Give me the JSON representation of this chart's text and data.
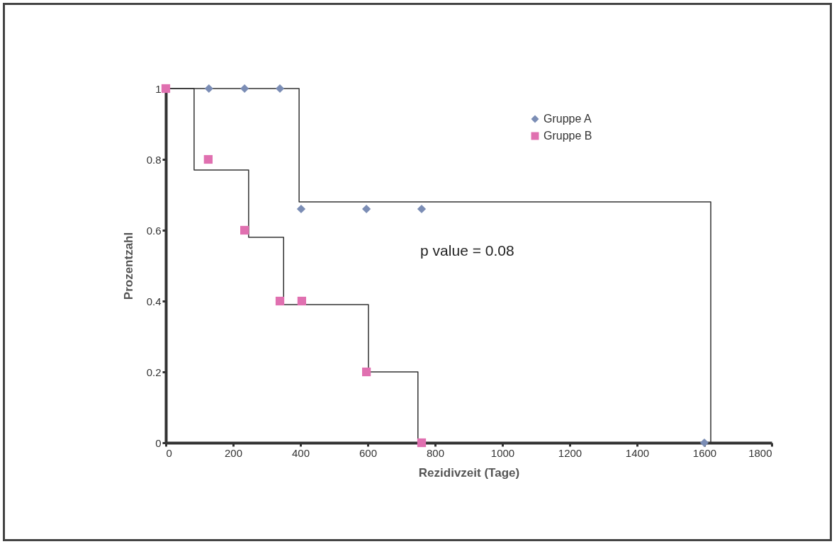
{
  "chart_data": {
    "type": "scatter",
    "xlabel": "Rezidivzeit (Tage)",
    "ylabel": "Prozentzahl",
    "xlim": [
      0,
      1800
    ],
    "xticks": [
      0,
      200,
      400,
      600,
      800,
      1000,
      1200,
      1400,
      1600,
      1800
    ],
    "ylim": [
      0,
      1
    ],
    "yticks": [
      0,
      0.2,
      0.4,
      0.6,
      0.8,
      1
    ],
    "grid": false,
    "legend": "top right",
    "annotations": [
      "p value = 0.08"
    ],
    "series": [
      {
        "type": "step",
        "color": "#333333",
        "line_style": "solid",
        "marker": "none",
        "x": [
          0,
          396,
          1619
        ],
        "values": [
          1,
          0.68,
          0
        ]
      },
      {
        "type": "step",
        "color": "#333333",
        "line_style": "solid",
        "marker": "none",
        "x": [
          0,
          84,
          246,
          350,
          602,
          749
        ],
        "values": [
          1,
          0.77,
          0.58,
          0.39,
          0.2,
          0
        ]
      },
      {
        "type": "scatter",
        "name": "Gruppe A",
        "color": "#7b8db5",
        "marker": "diamond",
        "x": [
          128,
          234,
          339,
          402,
          596,
          760,
          1600
        ],
        "values": [
          1,
          1,
          1,
          0.66,
          0.66,
          0.66,
          0
        ]
      },
      {
        "type": "scatter",
        "name": "Gruppe B",
        "color": "#e070b0",
        "marker": "square",
        "x": [
          0,
          126,
          234,
          339,
          404,
          596,
          760
        ],
        "values": [
          1,
          0.8,
          0.6,
          0.4,
          0.4,
          0.2,
          0
        ]
      }
    ]
  }
}
